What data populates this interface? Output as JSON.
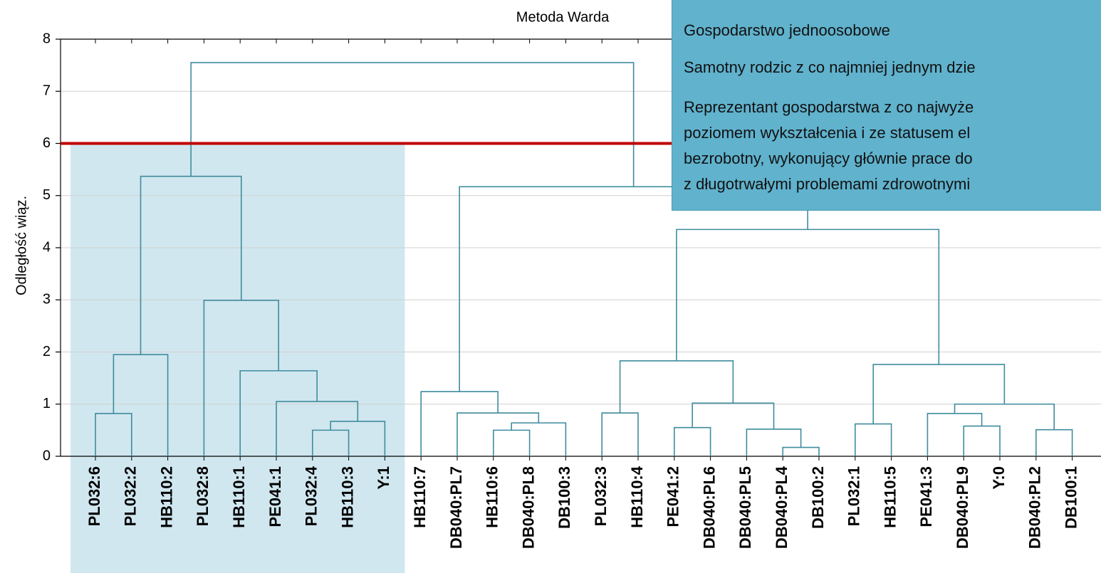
{
  "chart_data": {
    "type": "dendrogram",
    "title": "Metoda Warda",
    "y_label": "Odległość wiąz.",
    "ylim": [
      0,
      8
    ],
    "yticks": [
      0,
      1,
      2,
      3,
      4,
      5,
      6,
      7,
      8
    ],
    "grid": true,
    "color": "#3f8c9e",
    "cut_height": 6,
    "cut_color": "#c00000",
    "shade_color": "#d0e7ef",
    "tree": {
      "height": 7.55,
      "children": [
        {
          "height": 5.37,
          "children": [
            {
              "height": 1.95,
              "children": [
                {
                  "height": 0.82,
                  "children": [
                    "PL032:6",
                    "PL032:2"
                  ]
                },
                "HB110:2"
              ]
            },
            {
              "height": 2.99,
              "children": [
                "PL032:8",
                {
                  "height": 1.64,
                  "children": [
                    "HB110:1",
                    {
                      "height": 1.05,
                      "children": [
                        "PE041:1",
                        {
                          "height": 0.67,
                          "children": [
                            {
                              "height": 0.5,
                              "children": [
                                "PL032:4",
                                "HB110:3"
                              ]
                            },
                            "Y:1"
                          ]
                        }
                      ]
                    }
                  ]
                }
              ]
            }
          ]
        },
        {
          "height": 5.17,
          "children": [
            {
              "height": 1.24,
              "children": [
                "HB110:7",
                {
                  "height": 0.83,
                  "children": [
                    "DB040:PL7",
                    {
                      "height": 0.64,
                      "children": [
                        {
                          "height": 0.5,
                          "children": [
                            "HB110:6",
                            "DB040:PL8"
                          ]
                        },
                        "DB100:3"
                      ]
                    }
                  ]
                }
              ]
            },
            {
              "height": 4.35,
              "children": [
                {
                  "height": 1.83,
                  "children": [
                    {
                      "height": 0.83,
                      "children": [
                        "PL032:3",
                        "HB110:4"
                      ]
                    },
                    {
                      "height": 1.02,
                      "children": [
                        {
                          "height": 0.55,
                          "children": [
                            "PE041:2",
                            "DB040:PL6"
                          ]
                        },
                        {
                          "height": 0.52,
                          "children": [
                            "DB040:PL5",
                            {
                              "height": 0.17,
                              "children": [
                                "DB040:PL4",
                                "DB100:2"
                              ]
                            }
                          ]
                        }
                      ]
                    }
                  ]
                },
                {
                  "height": 1.76,
                  "children": [
                    {
                      "height": 0.62,
                      "children": [
                        "PL032:1",
                        "HB110:5"
                      ]
                    },
                    {
                      "height": 1.0,
                      "children": [
                        {
                          "height": 0.82,
                          "children": [
                            "PE041:3",
                            {
                              "height": 0.58,
                              "children": [
                                "DB040:PL9",
                                "Y:0"
                              ]
                            }
                          ]
                        },
                        {
                          "height": 0.51,
                          "children": [
                            "DB040:PL2",
                            "DB100:1"
                          ]
                        }
                      ]
                    }
                  ]
                }
              ]
            }
          ]
        }
      ]
    },
    "annotation_lines": [
      "Gospodarstwo jednoosobowe",
      "Samotny rodzic z co najmniej jednym dzie",
      "Reprezentant gospodarstwa z co najwyże",
      "poziomem wykształcenia i ze statusem el",
      "bezrobotny, wykonujący głównie prace do",
      "z długotrwałymi problemami zdrowotnymi"
    ]
  }
}
